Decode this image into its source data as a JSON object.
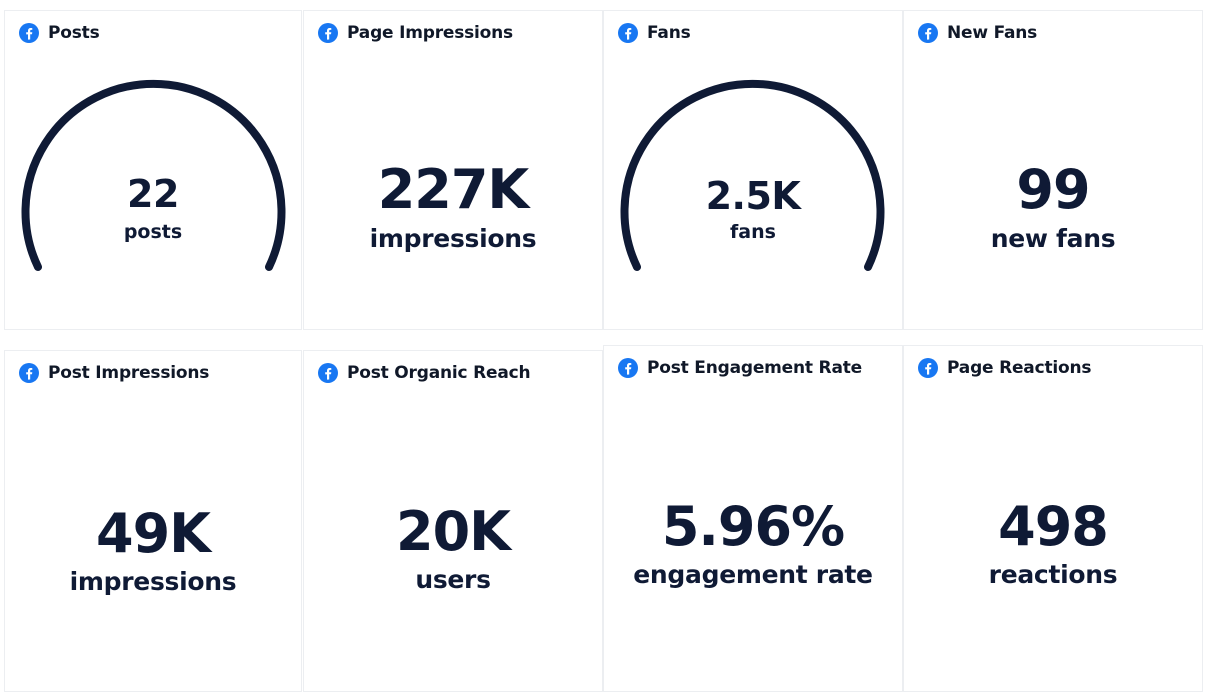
{
  "theme": {
    "ink": "#0f1a35",
    "facebook_blue": "#1877f2",
    "card_border": "#eceef1"
  },
  "cards": [
    {
      "icon": "facebook-icon",
      "title": "Posts",
      "value": "22",
      "unit": "posts",
      "widget": "gauge"
    },
    {
      "icon": "facebook-icon",
      "title": "Page Impressions",
      "value": "227K",
      "unit": "impressions",
      "widget": "number"
    },
    {
      "icon": "facebook-icon",
      "title": "Fans",
      "value": "2.5K",
      "unit": "fans",
      "widget": "gauge"
    },
    {
      "icon": "facebook-icon",
      "title": "New Fans",
      "value": "99",
      "unit": "new fans",
      "widget": "number"
    },
    {
      "icon": "facebook-icon",
      "title": "Post Impressions",
      "value": "49K",
      "unit": "impressions",
      "widget": "number"
    },
    {
      "icon": "facebook-icon",
      "title": "Post Organic Reach",
      "value": "20K",
      "unit": "users",
      "widget": "number"
    },
    {
      "icon": "facebook-icon",
      "title": "Post Engagement Rate",
      "value": "5.96%",
      "unit": "engagement rate",
      "widget": "number"
    },
    {
      "icon": "facebook-icon",
      "title": "Page Reactions",
      "value": "498",
      "unit": "reactions",
      "widget": "number"
    }
  ]
}
